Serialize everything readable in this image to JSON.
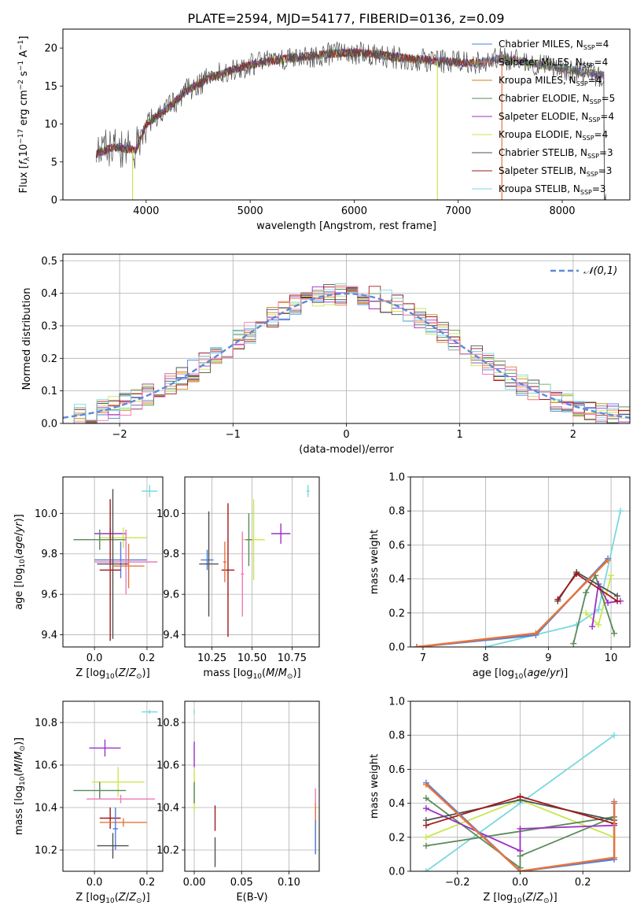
{
  "title": "PLATE=2594, MJD=54177, FIBERID=0136, z=0.09",
  "colors": {
    "Chabrier MILES": "#4a7ee0",
    "Salpeter MILES": "#e8743b",
    "Kroupa MILES": "#c8851d",
    "Chabrier ELODIE": "#5a8a5a",
    "Salpeter ELODIE": "#9b30c8",
    "Kroupa ELODIE": "#c8e64a",
    "Chabrier STELIB": "#505050",
    "Salpeter STELIB": "#a01a1a",
    "Kroupa STELIB": "#7ad8e0",
    "pink": "#f07ab8",
    "normal_curve": "#5b8ad8"
  },
  "chart_data": [
    {
      "id": "spectrum",
      "type": "line",
      "xlabel": "wavelength [Angstrom, rest frame]",
      "ylabel": "Flux [f_λ10^-17 erg cm^-2 s^-1 A^-1]",
      "xlim": [
        3200,
        8650
      ],
      "ylim": [
        0,
        22.5
      ],
      "xticks": [
        "4000",
        "5000",
        "6000",
        "7000",
        "8000"
      ],
      "yticks": [
        "0",
        "5",
        "10",
        "15",
        "20"
      ],
      "legend_position": "top-right",
      "legend": [
        {
          "name": "Chabrier MILES, N_SSP=4"
        },
        {
          "name": "Salpeter MILES, N_SSP=4"
        },
        {
          "name": "Kroupa MILES, N_SSP=4"
        },
        {
          "name": "Chabrier ELODIE, N_SSP=5"
        },
        {
          "name": "Salpeter ELODIE, N_SSP=4"
        },
        {
          "name": "Kroupa ELODIE, N_SSP=4"
        },
        {
          "name": "Chabrier STELIB, N_SSP=3"
        },
        {
          "name": "Salpeter STELIB, N_SSP=3"
        },
        {
          "name": "Kroupa STELIB, N_SSP=3"
        }
      ],
      "continuum": [
        [
          3500,
          6
        ],
        [
          3700,
          7
        ],
        [
          3900,
          6.5
        ],
        [
          4000,
          10
        ],
        [
          4200,
          12
        ],
        [
          4400,
          14.5
        ],
        [
          4600,
          16
        ],
        [
          4800,
          17
        ],
        [
          5000,
          17.8
        ],
        [
          5200,
          18.3
        ],
        [
          5400,
          18.7
        ],
        [
          5600,
          19
        ],
        [
          5800,
          19.3
        ],
        [
          6000,
          19.4
        ],
        [
          6200,
          19.2
        ],
        [
          6400,
          18.8
        ],
        [
          6600,
          18.5
        ],
        [
          6800,
          18.3
        ],
        [
          7000,
          18.1
        ],
        [
          7200,
          18
        ],
        [
          7400,
          18.6
        ],
        [
          7600,
          18.3
        ],
        [
          7800,
          17.8
        ],
        [
          8000,
          17.3
        ],
        [
          8200,
          16.8
        ],
        [
          8400,
          16.4
        ]
      ],
      "drop_lines": [
        {
          "series": "Kroupa ELODIE",
          "x": 6800
        },
        {
          "series": "Salpeter MILES",
          "x": 7420
        },
        {
          "series": "Kroupa ELODIE",
          "x": 3870
        }
      ]
    },
    {
      "id": "residuals",
      "type": "bar",
      "xlabel": "(data-model)/error",
      "ylabel": "Normed distribution",
      "xlim": [
        -2.5,
        2.5
      ],
      "ylim": [
        0,
        0.52
      ],
      "xticks": [
        "−2",
        "−1",
        "0",
        "1",
        "2"
      ],
      "yticks": [
        "0.0",
        "0.1",
        "0.2",
        "0.3",
        "0.4",
        "0.5"
      ],
      "legend_position": "top-right",
      "legend": [
        {
          "name": "𝒩(0,1)"
        }
      ],
      "bin_width": 0.1
    },
    {
      "id": "age_vs_Z",
      "type": "scatter",
      "xlabel": "Z [log10(Z/Z⊙)]",
      "ylabel": "age  [log10(age/yr)]",
      "xlim": [
        -0.12,
        0.26
      ],
      "ylim": [
        9.34,
        10.18
      ],
      "xticks": [
        "0.0",
        "0.2"
      ],
      "yticks": [
        "9.4",
        "9.6",
        "9.8",
        "10.0"
      ],
      "points": [
        {
          "s": "Kroupa STELIB",
          "x": 0.21,
          "y": 10.11,
          "ex": 0.03,
          "ey": 0.03
        },
        {
          "s": "Salpeter ELODIE",
          "x": 0.06,
          "y": 9.9,
          "ex": 0.06,
          "ey": 0.03
        },
        {
          "s": "Kroupa ELODIE",
          "x": 0.11,
          "y": 9.88,
          "ex": 0.09,
          "ey": 0.05
        },
        {
          "s": "Chabrier ELODIE",
          "x": 0.02,
          "y": 9.87,
          "ex": 0.1,
          "ey": 0.05
        },
        {
          "s": "Chabrier MILES",
          "x": 0.1,
          "y": 9.77,
          "ex": 0.1,
          "ey": 0.09
        },
        {
          "s": "pink",
          "x": 0.12,
          "y": 9.76,
          "ex": 0.12,
          "ey": 0.16
        },
        {
          "s": "Chabrier STELIB",
          "x": 0.07,
          "y": 9.75,
          "ex": 0.06,
          "ey": 0.37
        },
        {
          "s": "Salpeter MILES",
          "x": 0.13,
          "y": 9.74,
          "ex": 0.06,
          "ey": 0.11
        },
        {
          "s": "Salpeter STELIB",
          "x": 0.06,
          "y": 9.72,
          "ex": 0.04,
          "ey": 0.35
        }
      ]
    },
    {
      "id": "age_vs_mass",
      "type": "scatter",
      "xlabel": "mass [log10(M/M⊙)]",
      "ylabel": "",
      "xlim": [
        10.08,
        10.92
      ],
      "ylim": [
        9.34,
        10.18
      ],
      "xticks": [
        "10.25",
        "10.50",
        "10.75"
      ],
      "yticks": [
        "9.4",
        "9.6",
        "9.8",
        "10.0"
      ],
      "points": [
        {
          "s": "Kroupa STELIB",
          "x": 10.85,
          "y": 10.11,
          "ex": 0.01,
          "ey": 0.03
        },
        {
          "s": "Salpeter ELODIE",
          "x": 10.68,
          "y": 9.9,
          "ex": 0.06,
          "ey": 0.05
        },
        {
          "s": "Kroupa ELODIE",
          "x": 10.51,
          "y": 9.87,
          "ex": 0.07,
          "ey": 0.2
        },
        {
          "s": "Chabrier ELODIE",
          "x": 10.48,
          "y": 9.87,
          "ex": 0.02,
          "ey": 0.13
        },
        {
          "s": "Chabrier MILES",
          "x": 10.22,
          "y": 9.77,
          "ex": 0.04,
          "ey": 0.05
        },
        {
          "s": "Chabrier STELIB",
          "x": 10.23,
          "y": 9.75,
          "ex": 0.06,
          "ey": 0.26
        },
        {
          "s": "Salpeter STELIB",
          "x": 10.35,
          "y": 9.72,
          "ex": 0.04,
          "ey": 0.33
        },
        {
          "s": "Salpeter MILES",
          "x": 10.33,
          "y": 9.76,
          "ex": 0.01,
          "ey": 0.1
        },
        {
          "s": "pink",
          "x": 10.44,
          "y": 9.7,
          "ex": 0.01,
          "ey": 0.21
        }
      ]
    },
    {
      "id": "weight_vs_age",
      "type": "line",
      "xlabel": "age  [log10(age/yr)]",
      "ylabel": "mass weight",
      "xlim": [
        6.8,
        10.3
      ],
      "ylim": [
        0,
        1.0
      ],
      "xticks": [
        "7",
        "8",
        "9",
        "10"
      ],
      "yticks": [
        "0.0",
        "0.2",
        "0.4",
        "0.6",
        "0.8",
        "1.0"
      ],
      "series": [
        {
          "s": "Kroupa STELIB",
          "x": [
            8.0,
            9.45,
            9.8,
            10.15
          ],
          "y": [
            0.0,
            0.13,
            0.22,
            0.8
          ]
        },
        {
          "s": "Kroupa ELODIE",
          "x": [
            9.6,
            9.8,
            10.0
          ],
          "y": [
            0.2,
            0.13,
            0.42
          ]
        },
        {
          "s": "Chabrier ELODIE",
          "x": [
            9.4,
            9.6,
            9.75,
            10.05
          ],
          "y": [
            0.02,
            0.32,
            0.42,
            0.08
          ]
        },
        {
          "s": "Salpeter ELODIE",
          "x": [
            9.7,
            9.8,
            9.95,
            10.15
          ],
          "y": [
            0.12,
            0.37,
            0.26,
            0.27
          ]
        },
        {
          "s": "Chabrier STELIB",
          "x": [
            9.15,
            9.45,
            10.1
          ],
          "y": [
            0.27,
            0.44,
            0.3
          ]
        },
        {
          "s": "Salpeter STELIB",
          "x": [
            9.15,
            9.45,
            10.1
          ],
          "y": [
            0.28,
            0.43,
            0.27
          ]
        },
        {
          "s": "Chabrier MILES",
          "x": [
            6.9,
            8.8,
            9.95
          ],
          "y": [
            0.0,
            0.07,
            0.52
          ]
        },
        {
          "s": "Salpeter MILES",
          "x": [
            6.9,
            8.8,
            9.95
          ],
          "y": [
            0.0,
            0.08,
            0.51
          ]
        }
      ]
    },
    {
      "id": "mass_vs_Z",
      "type": "scatter",
      "xlabel": "Z [log10(Z/Z⊙)]",
      "ylabel": "mass [log10(M/M⊙)]",
      "xlim": [
        -0.12,
        0.26
      ],
      "ylim": [
        10.1,
        10.9
      ],
      "xticks": [
        "0.0",
        "0.2"
      ],
      "yticks": [
        "10.2",
        "10.4",
        "10.6",
        "10.8"
      ],
      "points": [
        {
          "s": "Kroupa STELIB",
          "x": 0.21,
          "y": 10.85,
          "ex": 0.03,
          "ey": 0.01
        },
        {
          "s": "Salpeter ELODIE",
          "x": 0.04,
          "y": 10.68,
          "ex": 0.06,
          "ey": 0.04
        },
        {
          "s": "Kroupa ELODIE",
          "x": 0.09,
          "y": 10.52,
          "ex": 0.1,
          "ey": 0.07
        },
        {
          "s": "Chabrier ELODIE",
          "x": 0.02,
          "y": 10.48,
          "ex": 0.1,
          "ey": 0.04
        },
        {
          "s": "pink",
          "x": 0.1,
          "y": 10.44,
          "ex": 0.13,
          "ey": 0.02
        },
        {
          "s": "Salpeter STELIB",
          "x": 0.06,
          "y": 10.35,
          "ex": 0.04,
          "ey": 0.05
        },
        {
          "s": "Salpeter MILES",
          "x": 0.11,
          "y": 10.33,
          "ex": 0.09,
          "ey": 0.02
        },
        {
          "s": "Chabrier MILES",
          "x": 0.08,
          "y": 10.3,
          "ex": 0.01,
          "ey": 0.1
        },
        {
          "s": "Chabrier STELIB",
          "x": 0.07,
          "y": 10.22,
          "ex": 0.06,
          "ey": 0.06
        }
      ]
    },
    {
      "id": "mass_vs_ebv",
      "type": "scatter",
      "xlabel": "E(B-V)",
      "ylabel": "",
      "xlim": [
        -0.01,
        0.132
      ],
      "ylim": [
        10.1,
        10.9
      ],
      "xticks": [
        "0.00",
        "0.05",
        "0.10"
      ],
      "yticks": [
        "10.2",
        "10.4",
        "10.6",
        "10.8"
      ],
      "points": [
        {
          "s": "Kroupa STELIB",
          "x": 0.0,
          "y": 10.85,
          "ex": 0,
          "ey": 0.01
        },
        {
          "s": "Salpeter ELODIE",
          "x": 0.0,
          "y": 10.65,
          "ex": 0,
          "ey": 0.06
        },
        {
          "s": "Kroupa ELODIE",
          "x": 0.0,
          "y": 10.48,
          "ex": 0,
          "ey": 0.1
        },
        {
          "s": "Chabrier ELODIE",
          "x": 0.0,
          "y": 10.47,
          "ex": 0,
          "ey": 0.05
        },
        {
          "s": "Salpeter STELIB",
          "x": 0.022,
          "y": 10.35,
          "ex": 0,
          "ey": 0.06
        },
        {
          "s": "Chabrier STELIB",
          "x": 0.022,
          "y": 10.19,
          "ex": 0,
          "ey": 0.07
        },
        {
          "s": "pink",
          "x": 0.128,
          "y": 10.4,
          "ex": 0,
          "ey": 0.09
        },
        {
          "s": "Salpeter MILES",
          "x": 0.128,
          "y": 10.3,
          "ex": 0,
          "ey": 0.12
        },
        {
          "s": "Chabrier MILES",
          "x": 0.128,
          "y": 10.26,
          "ex": 0,
          "ey": 0.08
        }
      ]
    },
    {
      "id": "weight_vs_Z",
      "type": "line",
      "xlabel": "Z [log10(Z/Z⊙)]",
      "ylabel": "mass weight",
      "xlim": [
        -0.35,
        0.35
      ],
      "ylim": [
        0,
        1.0
      ],
      "xticks": [
        "−0.2",
        "0.0",
        "0.2"
      ],
      "yticks": [
        "0.0",
        "0.2",
        "0.4",
        "0.6",
        "0.8",
        "1.0"
      ],
      "series": [
        {
          "s": "Kroupa STELIB",
          "x": [
            -0.3,
            0.0,
            0.3
          ],
          "y": [
            0.0,
            0.4,
            0.8
          ]
        },
        {
          "s": "Kroupa ELODIE",
          "x": [
            -0.3,
            0.0,
            0.3
          ],
          "y": [
            0.2,
            0.42,
            0.2
          ]
        },
        {
          "s": "Chabrier ELODIE",
          "x": [
            -0.3,
            0.0,
            0.0,
            0.3,
            -0.3
          ],
          "y": [
            0.43,
            0.02,
            0.09,
            0.32,
            0.15
          ]
        },
        {
          "s": "Salpeter ELODIE",
          "x": [
            -0.3,
            0.0,
            0.0,
            0.3
          ],
          "y": [
            0.37,
            0.12,
            0.25,
            0.27
          ]
        },
        {
          "s": "Chabrier STELIB",
          "x": [
            -0.3,
            0.0,
            0.3
          ],
          "y": [
            0.3,
            0.42,
            0.3
          ]
        },
        {
          "s": "Salpeter STELIB",
          "x": [
            -0.3,
            0.0,
            0.3
          ],
          "y": [
            0.27,
            0.44,
            0.28
          ]
        },
        {
          "s": "Chabrier MILES",
          "x": [
            -0.3,
            0.0,
            0.3,
            0.3
          ],
          "y": [
            0.52,
            0.0,
            0.07,
            0.4
          ]
        },
        {
          "s": "Salpeter MILES",
          "x": [
            -0.3,
            0.0,
            0.3,
            0.3
          ],
          "y": [
            0.51,
            0.0,
            0.08,
            0.41
          ]
        }
      ]
    }
  ]
}
